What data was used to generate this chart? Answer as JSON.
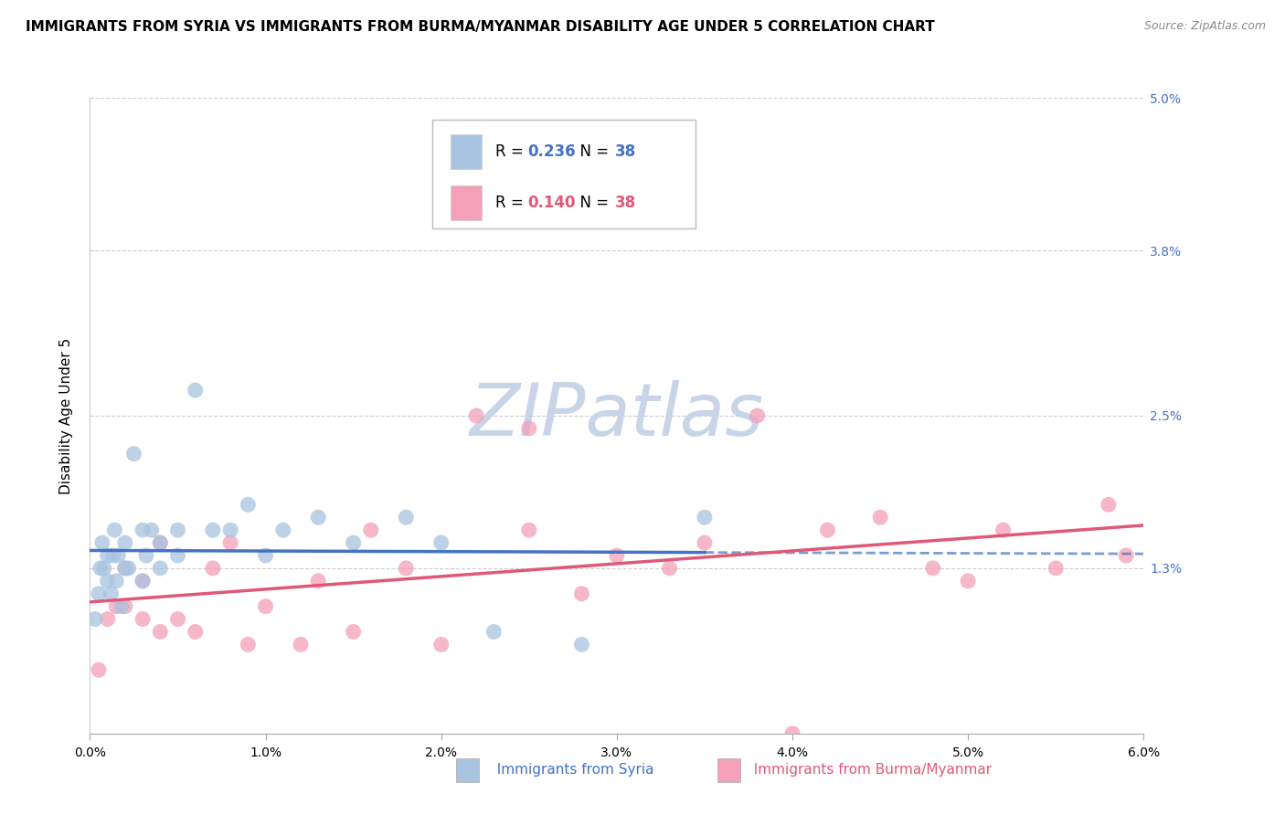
{
  "title": "IMMIGRANTS FROM SYRIA VS IMMIGRANTS FROM BURMA/MYANMAR DISABILITY AGE UNDER 5 CORRELATION CHART",
  "source": "Source: ZipAtlas.com",
  "ylabel": "Disability Age Under 5",
  "y_min": 0.0,
  "y_max": 0.05,
  "x_min": 0.0,
  "x_max": 0.06,
  "y_ticks": [
    0.0,
    0.013,
    0.025,
    0.038,
    0.05
  ],
  "y_tick_labels": [
    "",
    "1.3%",
    "2.5%",
    "3.8%",
    "5.0%"
  ],
  "x_ticks": [
    0.0,
    0.01,
    0.02,
    0.03,
    0.04,
    0.05,
    0.06
  ],
  "x_tick_labels": [
    "0.0%",
    "1.0%",
    "2.0%",
    "3.0%",
    "4.0%",
    "5.0%",
    "6.0%"
  ],
  "syria_R": "0.236",
  "syria_N": "38",
  "burma_R": "0.140",
  "burma_N": "38",
  "syria_color": "#a8c4e0",
  "burma_color": "#f4a0b8",
  "syria_line_color": "#4472c4",
  "burma_line_color": "#e05878",
  "watermark": "ZIPatlas",
  "watermark_color": "#c8d4e8",
  "syria_color_text": "#4472c4",
  "burma_color_text": "#e05878",
  "title_fontsize": 11,
  "axis_label_fontsize": 11,
  "tick_fontsize": 10,
  "marker_size": 150,
  "syria_scatter_x": [
    0.0003,
    0.0005,
    0.0006,
    0.0007,
    0.0008,
    0.001,
    0.001,
    0.0012,
    0.0013,
    0.0014,
    0.0015,
    0.0016,
    0.0018,
    0.002,
    0.002,
    0.0022,
    0.0025,
    0.003,
    0.003,
    0.0032,
    0.0035,
    0.004,
    0.004,
    0.005,
    0.005,
    0.006,
    0.007,
    0.008,
    0.009,
    0.01,
    0.011,
    0.013,
    0.015,
    0.018,
    0.02,
    0.023,
    0.028,
    0.035
  ],
  "syria_scatter_y": [
    0.009,
    0.011,
    0.013,
    0.015,
    0.013,
    0.012,
    0.014,
    0.011,
    0.014,
    0.016,
    0.012,
    0.014,
    0.01,
    0.013,
    0.015,
    0.013,
    0.022,
    0.012,
    0.016,
    0.014,
    0.016,
    0.013,
    0.015,
    0.014,
    0.016,
    0.027,
    0.016,
    0.016,
    0.018,
    0.014,
    0.016,
    0.017,
    0.015,
    0.017,
    0.015,
    0.008,
    0.007,
    0.017
  ],
  "burma_scatter_x": [
    0.0005,
    0.001,
    0.0015,
    0.002,
    0.002,
    0.003,
    0.003,
    0.004,
    0.004,
    0.005,
    0.006,
    0.007,
    0.008,
    0.009,
    0.01,
    0.012,
    0.013,
    0.015,
    0.016,
    0.018,
    0.02,
    0.022,
    0.025,
    0.025,
    0.028,
    0.03,
    0.033,
    0.035,
    0.038,
    0.04,
    0.042,
    0.045,
    0.048,
    0.05,
    0.052,
    0.055,
    0.058,
    0.059
  ],
  "burma_scatter_y": [
    0.005,
    0.009,
    0.01,
    0.01,
    0.013,
    0.009,
    0.012,
    0.008,
    0.015,
    0.009,
    0.008,
    0.013,
    0.015,
    0.007,
    0.01,
    0.007,
    0.012,
    0.008,
    0.016,
    0.013,
    0.007,
    0.025,
    0.016,
    0.024,
    0.011,
    0.014,
    0.013,
    0.015,
    0.025,
    0.0,
    0.016,
    0.017,
    0.013,
    0.012,
    0.016,
    0.013,
    0.018,
    0.014
  ]
}
